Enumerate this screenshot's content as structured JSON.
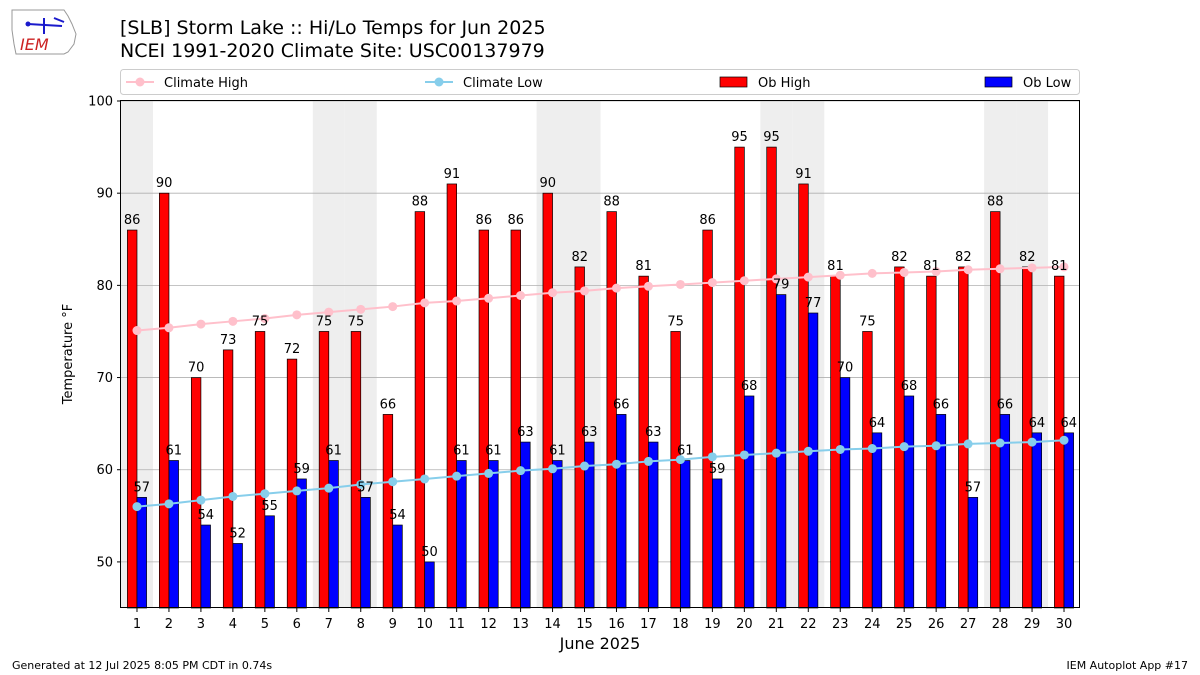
{
  "header": {
    "title_line1": "[SLB] Storm Lake :: Hi/Lo Temps for Jun 2025",
    "title_line2": "NCEI 1991-2020 Climate Site: USC00137979",
    "logo_text": "IEM"
  },
  "footer": {
    "left": "Generated at 12 Jul 2025 8:05 PM CDT in 0.74s",
    "right": "IEM Autoplot App #17"
  },
  "colors": {
    "ob_high": "#ff0000",
    "ob_low": "#0000ff",
    "climate_high": "#ffc0cb",
    "climate_low": "#87ceeb",
    "weekend_band": "#eeeeee",
    "grid": "#b0b0b0"
  },
  "chart_data": {
    "type": "bar",
    "xlabel": "June 2025",
    "ylabel": "Temperature °F",
    "ylim": [
      45,
      100
    ],
    "yticks": [
      50,
      60,
      70,
      80,
      90,
      100
    ],
    "grid": "horizontal",
    "legend_position": "top",
    "categories": [
      "1",
      "2",
      "3",
      "4",
      "5",
      "6",
      "7",
      "8",
      "9",
      "10",
      "11",
      "12",
      "13",
      "14",
      "15",
      "16",
      "17",
      "18",
      "19",
      "20",
      "21",
      "22",
      "23",
      "24",
      "25",
      "26",
      "27",
      "28",
      "29",
      "30"
    ],
    "shaded_days": [
      1,
      7,
      8,
      14,
      15,
      21,
      22,
      28,
      29
    ],
    "series": [
      {
        "name": "Climate High",
        "kind": "line",
        "values": [
          75.1,
          75.4,
          75.8,
          76.1,
          76.4,
          76.8,
          77.1,
          77.4,
          77.7,
          78.1,
          78.3,
          78.6,
          78.9,
          79.2,
          79.4,
          79.7,
          79.9,
          80.1,
          80.3,
          80.5,
          80.7,
          80.9,
          81.1,
          81.3,
          81.4,
          81.5,
          81.7,
          81.8,
          81.9,
          82.0
        ]
      },
      {
        "name": "Climate Low",
        "kind": "line",
        "values": [
          56.0,
          56.3,
          56.7,
          57.1,
          57.4,
          57.7,
          58.0,
          58.4,
          58.7,
          59.0,
          59.3,
          59.6,
          59.9,
          60.1,
          60.4,
          60.6,
          60.9,
          61.1,
          61.4,
          61.6,
          61.8,
          62.0,
          62.2,
          62.3,
          62.5,
          62.6,
          62.8,
          62.9,
          63.0,
          63.2
        ]
      },
      {
        "name": "Ob High",
        "kind": "bar",
        "values": [
          86,
          90,
          70,
          73,
          75,
          72,
          75,
          75,
          66,
          88,
          91,
          86,
          86,
          90,
          82,
          88,
          81,
          75,
          86,
          95,
          95,
          91,
          81,
          75,
          82,
          81,
          82,
          88,
          82,
          81
        ]
      },
      {
        "name": "Ob Low",
        "kind": "bar",
        "values": [
          57,
          61,
          54,
          52,
          55,
          59,
          61,
          57,
          54,
          50,
          61,
          61,
          63,
          61,
          63,
          66,
          63,
          61,
          59,
          68,
          79,
          77,
          70,
          64,
          68,
          66,
          57,
          66,
          64,
          64
        ]
      }
    ]
  }
}
